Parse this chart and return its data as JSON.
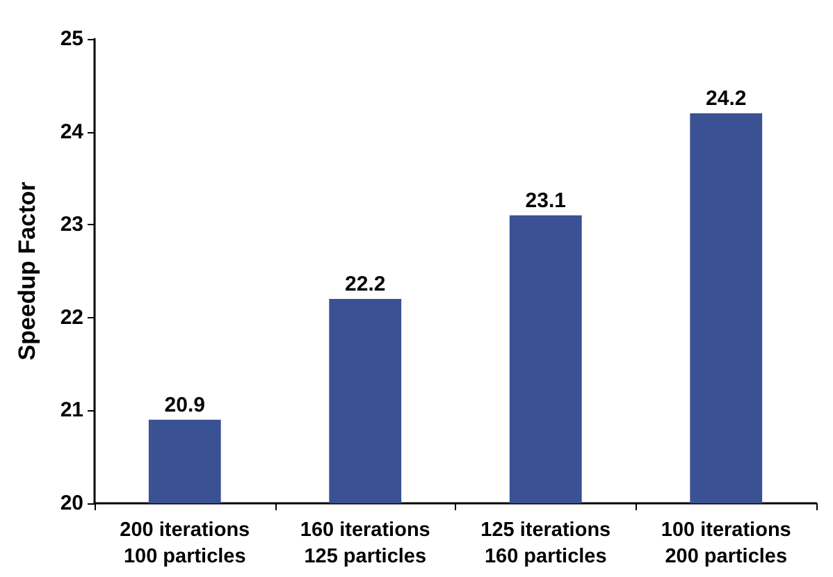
{
  "chart_data": {
    "type": "bar",
    "ylabel": "Speedup Factor",
    "categories": [
      "200 iterations\n100 particles",
      "160 iterations\n125 particles",
      "125 iterations\n160 particles",
      "100 iterations\n200 particles"
    ],
    "values": [
      20.9,
      22.2,
      23.1,
      24.2
    ],
    "color": "#3a5193",
    "ylim": [
      20,
      25
    ],
    "yticks": [
      20,
      21,
      22,
      23,
      24,
      25
    ],
    "grid": false,
    "data_labels": true
  }
}
